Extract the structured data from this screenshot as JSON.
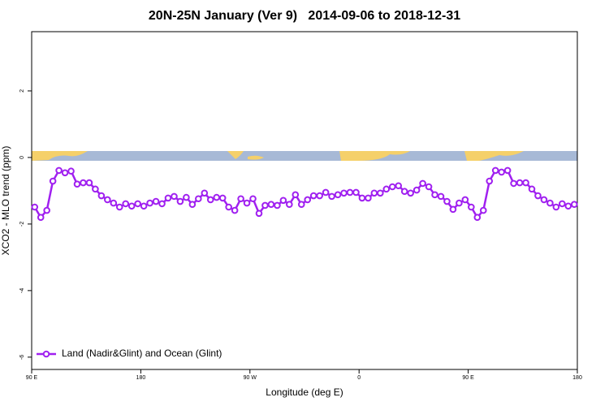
{
  "chart_data": {
    "type": "line",
    "title": "20N-25N January (Ver 9)   2014-09-06 to 2018-12-31",
    "x_label": "Longitude (deg E)",
    "y_label": "XCO2 - MLO trend (ppm)",
    "xlim": [
      90,
      540
    ],
    "ylim": [
      -6.37,
      3.78
    ],
    "xticks": [
      {
        "value": 90,
        "label": "90 E"
      },
      180,
      {
        "value": 270,
        "label": "90 W"
      },
      {
        "value": 360,
        "label": "0"
      },
      {
        "value": 450,
        "label": "90 E"
      },
      {
        "value": 540,
        "label": "180"
      }
    ],
    "yticks": [
      -6,
      -4,
      -2,
      0,
      2
    ],
    "legend": "bottom-left",
    "x": [
      92.5,
      97.5,
      102.5,
      107.5,
      112.5,
      117.5,
      122.5,
      127.5,
      132.5,
      137.5,
      142.5,
      147.5,
      152.5,
      157.5,
      162.5,
      167.5,
      172.5,
      177.5,
      182.5,
      187.5,
      192.5,
      197.5,
      202.5,
      207.5,
      212.5,
      217.5,
      222.5,
      227.5,
      232.5,
      237.5,
      242.5,
      247.5,
      252.5,
      257.5,
      262.5,
      267.5,
      272.5,
      277.5,
      282.5,
      287.5,
      292.5,
      297.5,
      302.5,
      307.5,
      312.5,
      317.5,
      322.5,
      327.5,
      332.5,
      337.5,
      342.5,
      347.5,
      352.5,
      357.5,
      362.5,
      367.5,
      372.5,
      377.5,
      382.5,
      387.5,
      392.5,
      397.5,
      402.5,
      407.5,
      412.5,
      417.5,
      422.5,
      427.5,
      432.5,
      437.5,
      442.5,
      447.5,
      452.5,
      457.5,
      462.5,
      467.5,
      472.5,
      477.5,
      482.5,
      487.5,
      492.5,
      497.5,
      502.5,
      507.5,
      512.5,
      517.5,
      522.5,
      527.5,
      532.5,
      537.5
    ],
    "series": [
      {
        "name": "Land (Nadir&Glint) and Ocean (Glint)",
        "color": "#a020f0",
        "values": [
          -1.49,
          -1.8,
          -1.59,
          -0.71,
          -0.39,
          -0.46,
          -0.41,
          -0.8,
          -0.76,
          -0.76,
          -0.95,
          -1.15,
          -1.27,
          -1.37,
          -1.49,
          -1.39,
          -1.46,
          -1.39,
          -1.46,
          -1.37,
          -1.32,
          -1.39,
          -1.22,
          -1.17,
          -1.32,
          -1.2,
          -1.41,
          -1.24,
          -1.07,
          -1.27,
          -1.2,
          -1.22,
          -1.49,
          -1.59,
          -1.24,
          -1.37,
          -1.24,
          -1.68,
          -1.44,
          -1.41,
          -1.44,
          -1.29,
          -1.41,
          -1.12,
          -1.41,
          -1.27,
          -1.15,
          -1.15,
          -1.05,
          -1.17,
          -1.12,
          -1.07,
          -1.05,
          -1.05,
          -1.22,
          -1.22,
          -1.07,
          -1.07,
          -0.95,
          -0.88,
          -0.85,
          -1.02,
          -1.07,
          -0.98,
          -0.78,
          -0.88,
          -1.12,
          -1.17,
          -1.32,
          -1.56,
          -1.37,
          -1.27,
          -1.49,
          -1.8,
          -1.59,
          -0.71,
          -0.39,
          -0.44,
          -0.39,
          -0.78,
          -0.76,
          -0.76,
          -0.95,
          -1.15,
          -1.27,
          -1.37,
          -1.49,
          -1.39,
          -1.46,
          -1.41
        ]
      }
    ]
  }
}
